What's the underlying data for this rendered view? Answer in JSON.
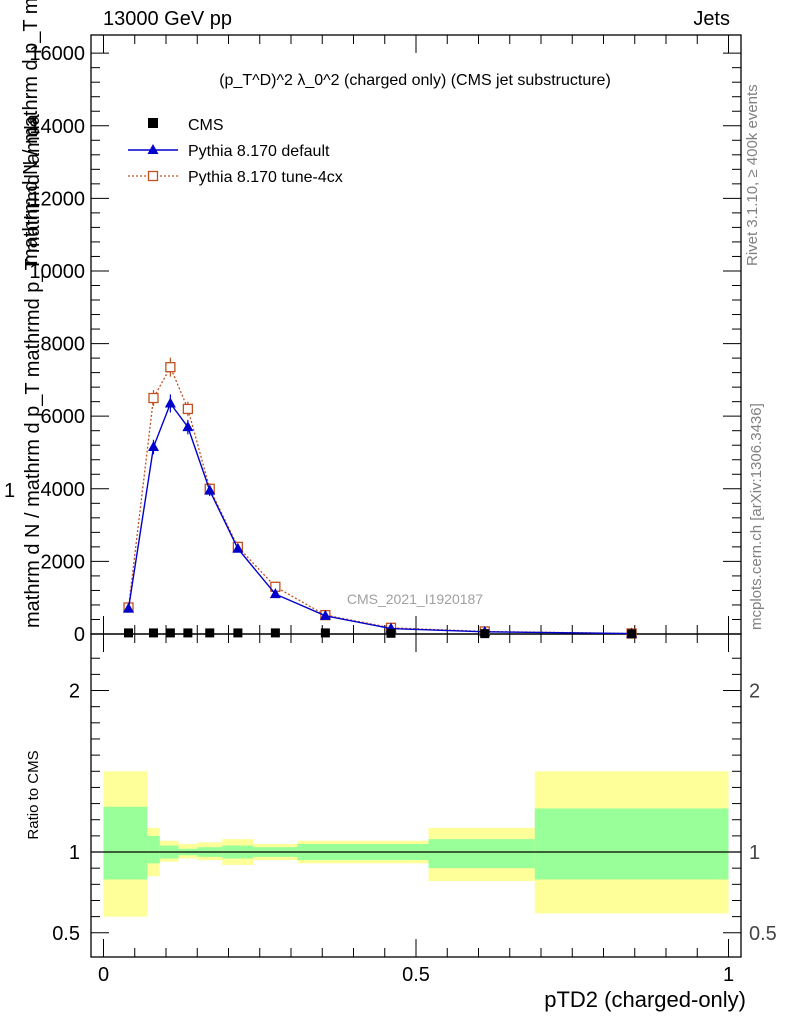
{
  "header": {
    "left": "13000 GeV pp",
    "right": "Jets"
  },
  "side_labels": {
    "rivet": "Rivet 3.1.10, ≥ 400k events",
    "mcplots": "mcplots.cern.ch [arXiv:1306.3436]"
  },
  "watermark": "CMS_2021_I1920187",
  "ylabel_main": {
    "line1": "mathrm d N / mathrm d p_T mathrmd lambda",
    "line2": "mathrm d N / mathrm d p_T mathrmd p_T mathrmd lamda",
    "one": "1"
  },
  "chart_data": [
    {
      "type": "line",
      "title": "(p_T^D)^2 λ_0^2 (charged only) (CMS jet substructure)",
      "xlabel": "pTD2 (charged-only)",
      "ylim": [
        0,
        16500
      ],
      "xlim": [
        -0.02,
        1.02
      ],
      "yticks": [
        0,
        2000,
        4000,
        6000,
        8000,
        10000,
        12000,
        14000,
        16000
      ],
      "yticklabels": [
        "0",
        "2000",
        "4000",
        "6000",
        "8000",
        "10000",
        "12000",
        "14000",
        "16000"
      ],
      "legend_position": "top-left",
      "series": [
        {
          "name": "CMS",
          "color": "#000000",
          "marker": "square",
          "x": [
            0.04,
            0.08,
            0.107,
            0.135,
            0.17,
            0.215,
            0.275,
            0.355,
            0.46,
            0.61,
            0.845
          ],
          "y": [
            30,
            30,
            30,
            30,
            30,
            30,
            30,
            30,
            20,
            10,
            5
          ]
        },
        {
          "name": "Pythia 8.170 default",
          "color": "#0000cc",
          "marker": "triangle",
          "x": [
            0.04,
            0.08,
            0.107,
            0.135,
            0.17,
            0.215,
            0.275,
            0.355,
            0.46,
            0.61,
            0.845
          ],
          "y": [
            700,
            5150,
            6350,
            5700,
            3950,
            2350,
            1100,
            500,
            150,
            60,
            10
          ],
          "err": [
            40,
            200,
            250,
            200,
            150,
            100,
            70,
            40,
            20,
            10,
            5
          ]
        },
        {
          "name": "Pythia 8.170 tune-4cx",
          "color": "#c05020",
          "marker": "open-square",
          "x": [
            0.04,
            0.08,
            0.107,
            0.135,
            0.17,
            0.215,
            0.275,
            0.355,
            0.46,
            0.61,
            0.845
          ],
          "y": [
            730,
            6500,
            7350,
            6200,
            4000,
            2400,
            1300,
            520,
            170,
            70,
            15
          ],
          "err": [
            40,
            220,
            260,
            200,
            150,
            100,
            70,
            40,
            20,
            10,
            5
          ]
        }
      ]
    },
    {
      "type": "area",
      "ylabel": "Ratio to CMS",
      "xlabel": "pTD2 (charged-only)",
      "ylim": [
        0.35,
        2.35
      ],
      "xlim": [
        -0.02,
        1.02
      ],
      "yticks": [
        0.5,
        1,
        2
      ],
      "yticklabels": [
        "0.5",
        "1",
        "2"
      ],
      "xticks": [
        0,
        0.5,
        1
      ],
      "xticklabels": [
        "0",
        "0.5",
        "1"
      ],
      "bins": [
        {
          "lo": 0.0,
          "hi": 0.07,
          "outer": [
            0.6,
            1.5
          ],
          "inner": [
            0.83,
            1.28
          ]
        },
        {
          "lo": 0.07,
          "hi": 0.09,
          "outer": [
            0.85,
            1.15
          ],
          "inner": [
            0.93,
            1.1
          ]
        },
        {
          "lo": 0.09,
          "hi": 0.12,
          "outer": [
            0.94,
            1.07
          ],
          "inner": [
            0.96,
            1.04
          ]
        },
        {
          "lo": 0.12,
          "hi": 0.15,
          "outer": [
            0.96,
            1.05
          ],
          "inner": [
            0.98,
            1.02
          ]
        },
        {
          "lo": 0.15,
          "hi": 0.19,
          "outer": [
            0.95,
            1.06
          ],
          "inner": [
            0.97,
            1.03
          ]
        },
        {
          "lo": 0.19,
          "hi": 0.24,
          "outer": [
            0.92,
            1.08
          ],
          "inner": [
            0.96,
            1.04
          ]
        },
        {
          "lo": 0.24,
          "hi": 0.31,
          "outer": [
            0.95,
            1.05
          ],
          "inner": [
            0.97,
            1.03
          ]
        },
        {
          "lo": 0.31,
          "hi": 0.52,
          "outer": [
            0.93,
            1.07
          ],
          "inner": [
            0.95,
            1.05
          ]
        },
        {
          "lo": 0.52,
          "hi": 0.69,
          "outer": [
            0.82,
            1.15
          ],
          "inner": [
            0.9,
            1.08
          ]
        },
        {
          "lo": 0.69,
          "hi": 1.0,
          "outer": [
            0.62,
            1.5
          ],
          "inner": [
            0.83,
            1.27
          ]
        }
      ]
    }
  ]
}
